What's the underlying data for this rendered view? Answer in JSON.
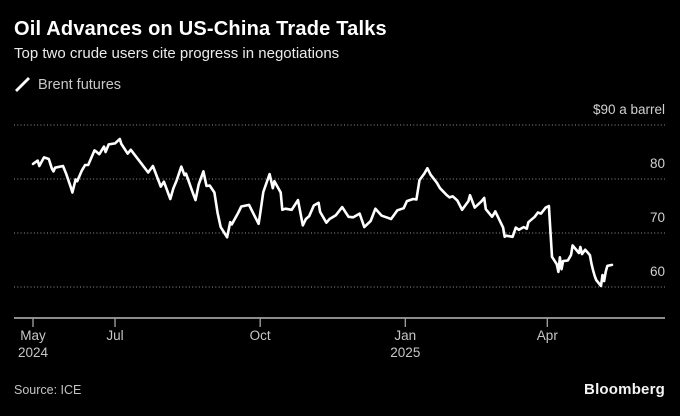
{
  "header": {
    "title": "Oil Advances on US-China Trade Talks",
    "subtitle": "Top two crude users cite progress in negotiations"
  },
  "legend": {
    "items": [
      {
        "label": "Brent futures",
        "marker": "white-slash"
      }
    ]
  },
  "footer": {
    "source": "Source: ICE",
    "brand": "Bloomberg"
  },
  "colors": {
    "background": "#000000",
    "line": "#ffffff",
    "grid": "#969696",
    "axis": "#bcbcbc",
    "label": "#c9c9c9",
    "title": "#ffffff"
  },
  "chart_data": {
    "type": "line",
    "title": "Oil Advances on US-China Trade Talks",
    "subtitle": "Top two crude users cite progress in negotiations",
    "ylabel": "$ a barrel",
    "ylim": [
      60,
      90
    ],
    "grid": "horizontal-dotted",
    "legend_position": "top-left",
    "y_ticks": [
      {
        "value": 90,
        "label": "$90 a barrel"
      },
      {
        "value": 80,
        "label": "80"
      },
      {
        "value": 70,
        "label": "70"
      },
      {
        "value": 60,
        "label": "60"
      }
    ],
    "x_ticks": [
      {
        "date": "2024-05-10",
        "label": "May",
        "sublabel": "2024"
      },
      {
        "date": "2024-07-01",
        "label": "Jul"
      },
      {
        "date": "2024-10-01",
        "label": "Oct"
      },
      {
        "date": "2025-01-01",
        "label": "Jan",
        "sublabel": "2025"
      },
      {
        "date": "2025-04-01",
        "label": "Apr"
      }
    ],
    "series": [
      {
        "name": "Brent futures",
        "unit": "USD per barrel",
        "points": [
          [
            "2024-05-10",
            82.8
          ],
          [
            "2024-05-13",
            83.4
          ],
          [
            "2024-05-14",
            82.4
          ],
          [
            "2024-05-17",
            84.0
          ],
          [
            "2024-05-20",
            83.7
          ],
          [
            "2024-05-22",
            81.9
          ],
          [
            "2024-05-23",
            81.4
          ],
          [
            "2024-05-24",
            82.1
          ],
          [
            "2024-05-29",
            82.4
          ],
          [
            "2024-05-31",
            81.0
          ],
          [
            "2024-06-03",
            78.4
          ],
          [
            "2024-06-04",
            77.5
          ],
          [
            "2024-06-06",
            79.9
          ],
          [
            "2024-06-07",
            79.6
          ],
          [
            "2024-06-10",
            81.6
          ],
          [
            "2024-06-12",
            82.6
          ],
          [
            "2024-06-14",
            82.6
          ],
          [
            "2024-06-18",
            85.3
          ],
          [
            "2024-06-19",
            85.1
          ],
          [
            "2024-06-21",
            84.6
          ],
          [
            "2024-06-24",
            86.0
          ],
          [
            "2024-06-25",
            85.0
          ],
          [
            "2024-06-27",
            86.4
          ],
          [
            "2024-07-01",
            86.6
          ],
          [
            "2024-07-04",
            87.4
          ],
          [
            "2024-07-05",
            86.5
          ],
          [
            "2024-07-09",
            84.7
          ],
          [
            "2024-07-11",
            85.4
          ],
          [
            "2024-07-16",
            83.5
          ],
          [
            "2024-07-22",
            81.2
          ],
          [
            "2024-07-25",
            82.4
          ],
          [
            "2024-07-30",
            78.6
          ],
          [
            "2024-08-01",
            79.5
          ],
          [
            "2024-08-05",
            76.3
          ],
          [
            "2024-08-07",
            78.3
          ],
          [
            "2024-08-09",
            79.7
          ],
          [
            "2024-08-12",
            82.3
          ],
          [
            "2024-08-14",
            80.7
          ],
          [
            "2024-08-15",
            81.0
          ],
          [
            "2024-08-19",
            77.7
          ],
          [
            "2024-08-21",
            76.1
          ],
          [
            "2024-08-23",
            79.0
          ],
          [
            "2024-08-26",
            81.4
          ],
          [
            "2024-08-28",
            78.7
          ],
          [
            "2024-08-30",
            78.8
          ],
          [
            "2024-09-02",
            77.5
          ],
          [
            "2024-09-04",
            73.7
          ],
          [
            "2024-09-06",
            71.1
          ],
          [
            "2024-09-10",
            69.2
          ],
          [
            "2024-09-12",
            72.0
          ],
          [
            "2024-09-13",
            71.6
          ],
          [
            "2024-09-17",
            73.7
          ],
          [
            "2024-09-19",
            74.9
          ],
          [
            "2024-09-24",
            75.2
          ],
          [
            "2024-09-26",
            74.0
          ],
          [
            "2024-09-30",
            71.7
          ],
          [
            "2024-10-01",
            73.6
          ],
          [
            "2024-10-03",
            77.6
          ],
          [
            "2024-10-07",
            80.9
          ],
          [
            "2024-10-09",
            78.3
          ],
          [
            "2024-10-10",
            79.6
          ],
          [
            "2024-10-14",
            77.5
          ],
          [
            "2024-10-15",
            74.3
          ],
          [
            "2024-10-17",
            74.5
          ],
          [
            "2024-10-21",
            74.3
          ],
          [
            "2024-10-25",
            76.1
          ],
          [
            "2024-10-28",
            71.4
          ],
          [
            "2024-10-30",
            72.6
          ],
          [
            "2024-11-01",
            73.1
          ],
          [
            "2024-11-04",
            75.1
          ],
          [
            "2024-11-07",
            75.6
          ],
          [
            "2024-11-08",
            73.9
          ],
          [
            "2024-11-12",
            71.9
          ],
          [
            "2024-11-14",
            72.6
          ],
          [
            "2024-11-18",
            73.3
          ],
          [
            "2024-11-22",
            74.8
          ],
          [
            "2024-11-26",
            73.0
          ],
          [
            "2024-11-29",
            72.9
          ],
          [
            "2024-12-03",
            73.6
          ],
          [
            "2024-12-06",
            71.1
          ],
          [
            "2024-12-10",
            72.2
          ],
          [
            "2024-12-13",
            74.5
          ],
          [
            "2024-12-17",
            73.2
          ],
          [
            "2024-12-20",
            72.9
          ],
          [
            "2024-12-23",
            72.6
          ],
          [
            "2024-12-27",
            74.2
          ],
          [
            "2024-12-31",
            74.6
          ],
          [
            "2025-01-02",
            75.9
          ],
          [
            "2025-01-06",
            76.3
          ],
          [
            "2025-01-08",
            76.2
          ],
          [
            "2025-01-10",
            79.8
          ],
          [
            "2025-01-13",
            81.0
          ],
          [
            "2025-01-15",
            82.0
          ],
          [
            "2025-01-17",
            80.8
          ],
          [
            "2025-01-21",
            79.3
          ],
          [
            "2025-01-23",
            78.3
          ],
          [
            "2025-01-27",
            77.1
          ],
          [
            "2025-01-29",
            76.6
          ],
          [
            "2025-01-31",
            76.8
          ],
          [
            "2025-02-03",
            76.0
          ],
          [
            "2025-02-06",
            74.3
          ],
          [
            "2025-02-10",
            75.9
          ],
          [
            "2025-02-11",
            77.0
          ],
          [
            "2025-02-14",
            74.7
          ],
          [
            "2025-02-18",
            75.8
          ],
          [
            "2025-02-20",
            76.5
          ],
          [
            "2025-02-21",
            74.4
          ],
          [
            "2025-02-25",
            73.0
          ],
          [
            "2025-02-27",
            74.0
          ],
          [
            "2025-03-04",
            71.0
          ],
          [
            "2025-03-05",
            69.3
          ],
          [
            "2025-03-06",
            69.5
          ],
          [
            "2025-03-10",
            69.3
          ],
          [
            "2025-03-12",
            71.0
          ],
          [
            "2025-03-14",
            70.6
          ],
          [
            "2025-03-17",
            71.1
          ],
          [
            "2025-03-19",
            70.8
          ],
          [
            "2025-03-20",
            72.0
          ],
          [
            "2025-03-24",
            73.0
          ],
          [
            "2025-03-26",
            73.8
          ],
          [
            "2025-03-28",
            73.6
          ],
          [
            "2025-03-31",
            74.7
          ],
          [
            "2025-04-02",
            75.0
          ],
          [
            "2025-04-03",
            70.1
          ],
          [
            "2025-04-04",
            65.6
          ],
          [
            "2025-04-07",
            64.2
          ],
          [
            "2025-04-08",
            62.8
          ],
          [
            "2025-04-09",
            65.5
          ],
          [
            "2025-04-10",
            63.3
          ],
          [
            "2025-04-11",
            64.8
          ],
          [
            "2025-04-14",
            64.9
          ],
          [
            "2025-04-16",
            65.9
          ],
          [
            "2025-04-17",
            67.7
          ],
          [
            "2025-04-21",
            66.3
          ],
          [
            "2025-04-22",
            67.4
          ],
          [
            "2025-04-23",
            66.1
          ],
          [
            "2025-04-25",
            66.9
          ],
          [
            "2025-04-28",
            65.9
          ],
          [
            "2025-04-29",
            64.3
          ],
          [
            "2025-04-30",
            63.1
          ],
          [
            "2025-05-01",
            62.1
          ],
          [
            "2025-05-02",
            61.3
          ],
          [
            "2025-05-05",
            60.2
          ],
          [
            "2025-05-06",
            62.2
          ],
          [
            "2025-05-07",
            61.1
          ],
          [
            "2025-05-08",
            62.8
          ],
          [
            "2025-05-09",
            63.9
          ],
          [
            "2025-05-12",
            64.1
          ]
        ]
      }
    ]
  }
}
